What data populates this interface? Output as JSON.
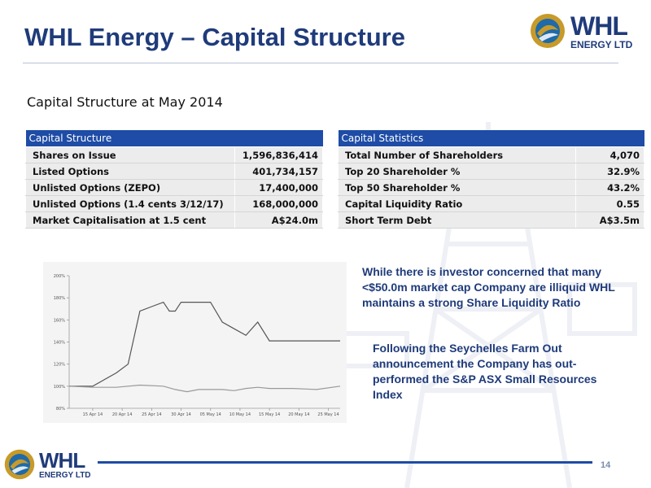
{
  "header": {
    "title": "WHL Energy – Capital Structure",
    "logo_text": "WHL",
    "logo_subtext": "ENERGY LTD"
  },
  "subtitle": "Capital Structure at May 2014",
  "capital_structure": {
    "header": "Capital Structure",
    "rows": [
      {
        "label": "Shares on Issue",
        "value": "1,596,836,414"
      },
      {
        "label": "Listed Options",
        "value": "401,734,157"
      },
      {
        "label": "Unlisted Options (ZEPO)",
        "value": "17,400,000"
      },
      {
        "label": "Unlisted Options (1.4 cents 3/12/17)",
        "value": "168,000,000"
      },
      {
        "label": "Market Capitalisation at 1.5 cent",
        "value": "A$24.0m"
      }
    ]
  },
  "capital_statistics": {
    "header": "Capital Statistics",
    "rows": [
      {
        "label": "Total Number of Shareholders",
        "value": "4,070"
      },
      {
        "label": "Top 20 Shareholder %",
        "value": "32.9%"
      },
      {
        "label": "Top 50 Shareholder %",
        "value": "43.2%"
      },
      {
        "label": "Capital Liquidity Ratio",
        "value": "0.55"
      },
      {
        "label": "Short Term Debt",
        "value": "A$3.5m"
      }
    ]
  },
  "chart_data": {
    "type": "line",
    "title": "",
    "xlabel": "",
    "ylabel": "",
    "ylim": [
      80,
      200
    ],
    "yticks": [
      "80%",
      "100%",
      "120%",
      "140%",
      "160%",
      "180%",
      "200%"
    ],
    "ytick_values": [
      80,
      100,
      120,
      140,
      160,
      180,
      200
    ],
    "xticks": [
      "15 Apr 14",
      "20 Apr 14",
      "25 Apr 14",
      "30 Apr 14",
      "05 May 14",
      "10 May 14",
      "15 May 14",
      "20 May 14",
      "25 May 14"
    ],
    "xtick_values": [
      2,
      7,
      12,
      17,
      22,
      27,
      32,
      37,
      42
    ],
    "xlim": [
      -2,
      44
    ],
    "series": [
      {
        "color": "#555555",
        "x": [
          -2,
          2,
          6,
          8,
          10,
          12,
          14,
          15,
          16,
          17,
          20,
          22,
          24,
          26,
          28,
          30,
          32,
          44
        ],
        "values": [
          100,
          100,
          112,
          120,
          168,
          172,
          176,
          168,
          168,
          176,
          176,
          176,
          158,
          152,
          146,
          158,
          141,
          141
        ]
      },
      {
        "color": "#999999",
        "x": [
          -2,
          2,
          6,
          10,
          14,
          16,
          18,
          20,
          24,
          26,
          28,
          30,
          32,
          36,
          40,
          44
        ],
        "values": [
          100,
          99,
          99,
          101,
          100,
          97,
          95,
          97,
          97,
          96,
          98,
          99,
          98,
          98,
          97,
          100
        ]
      }
    ]
  },
  "paragraphs": {
    "p1": "While there is investor concerned that many <$50.0m market cap Company are illiquid WHL maintains a strong Share Liquidity Ratio",
    "p2": "Following the Seychelles Farm Out announcement the Company has out-performed the S&P ASX Small Resources Index"
  },
  "footer": {
    "page_number": "14",
    "logo_text": "WHL",
    "logo_subtext": "ENERGY LTD"
  },
  "colors": {
    "brand_blue": "#1f3b7a",
    "table_header": "#1e4ca6",
    "logo_gold": "#c79a2a"
  }
}
